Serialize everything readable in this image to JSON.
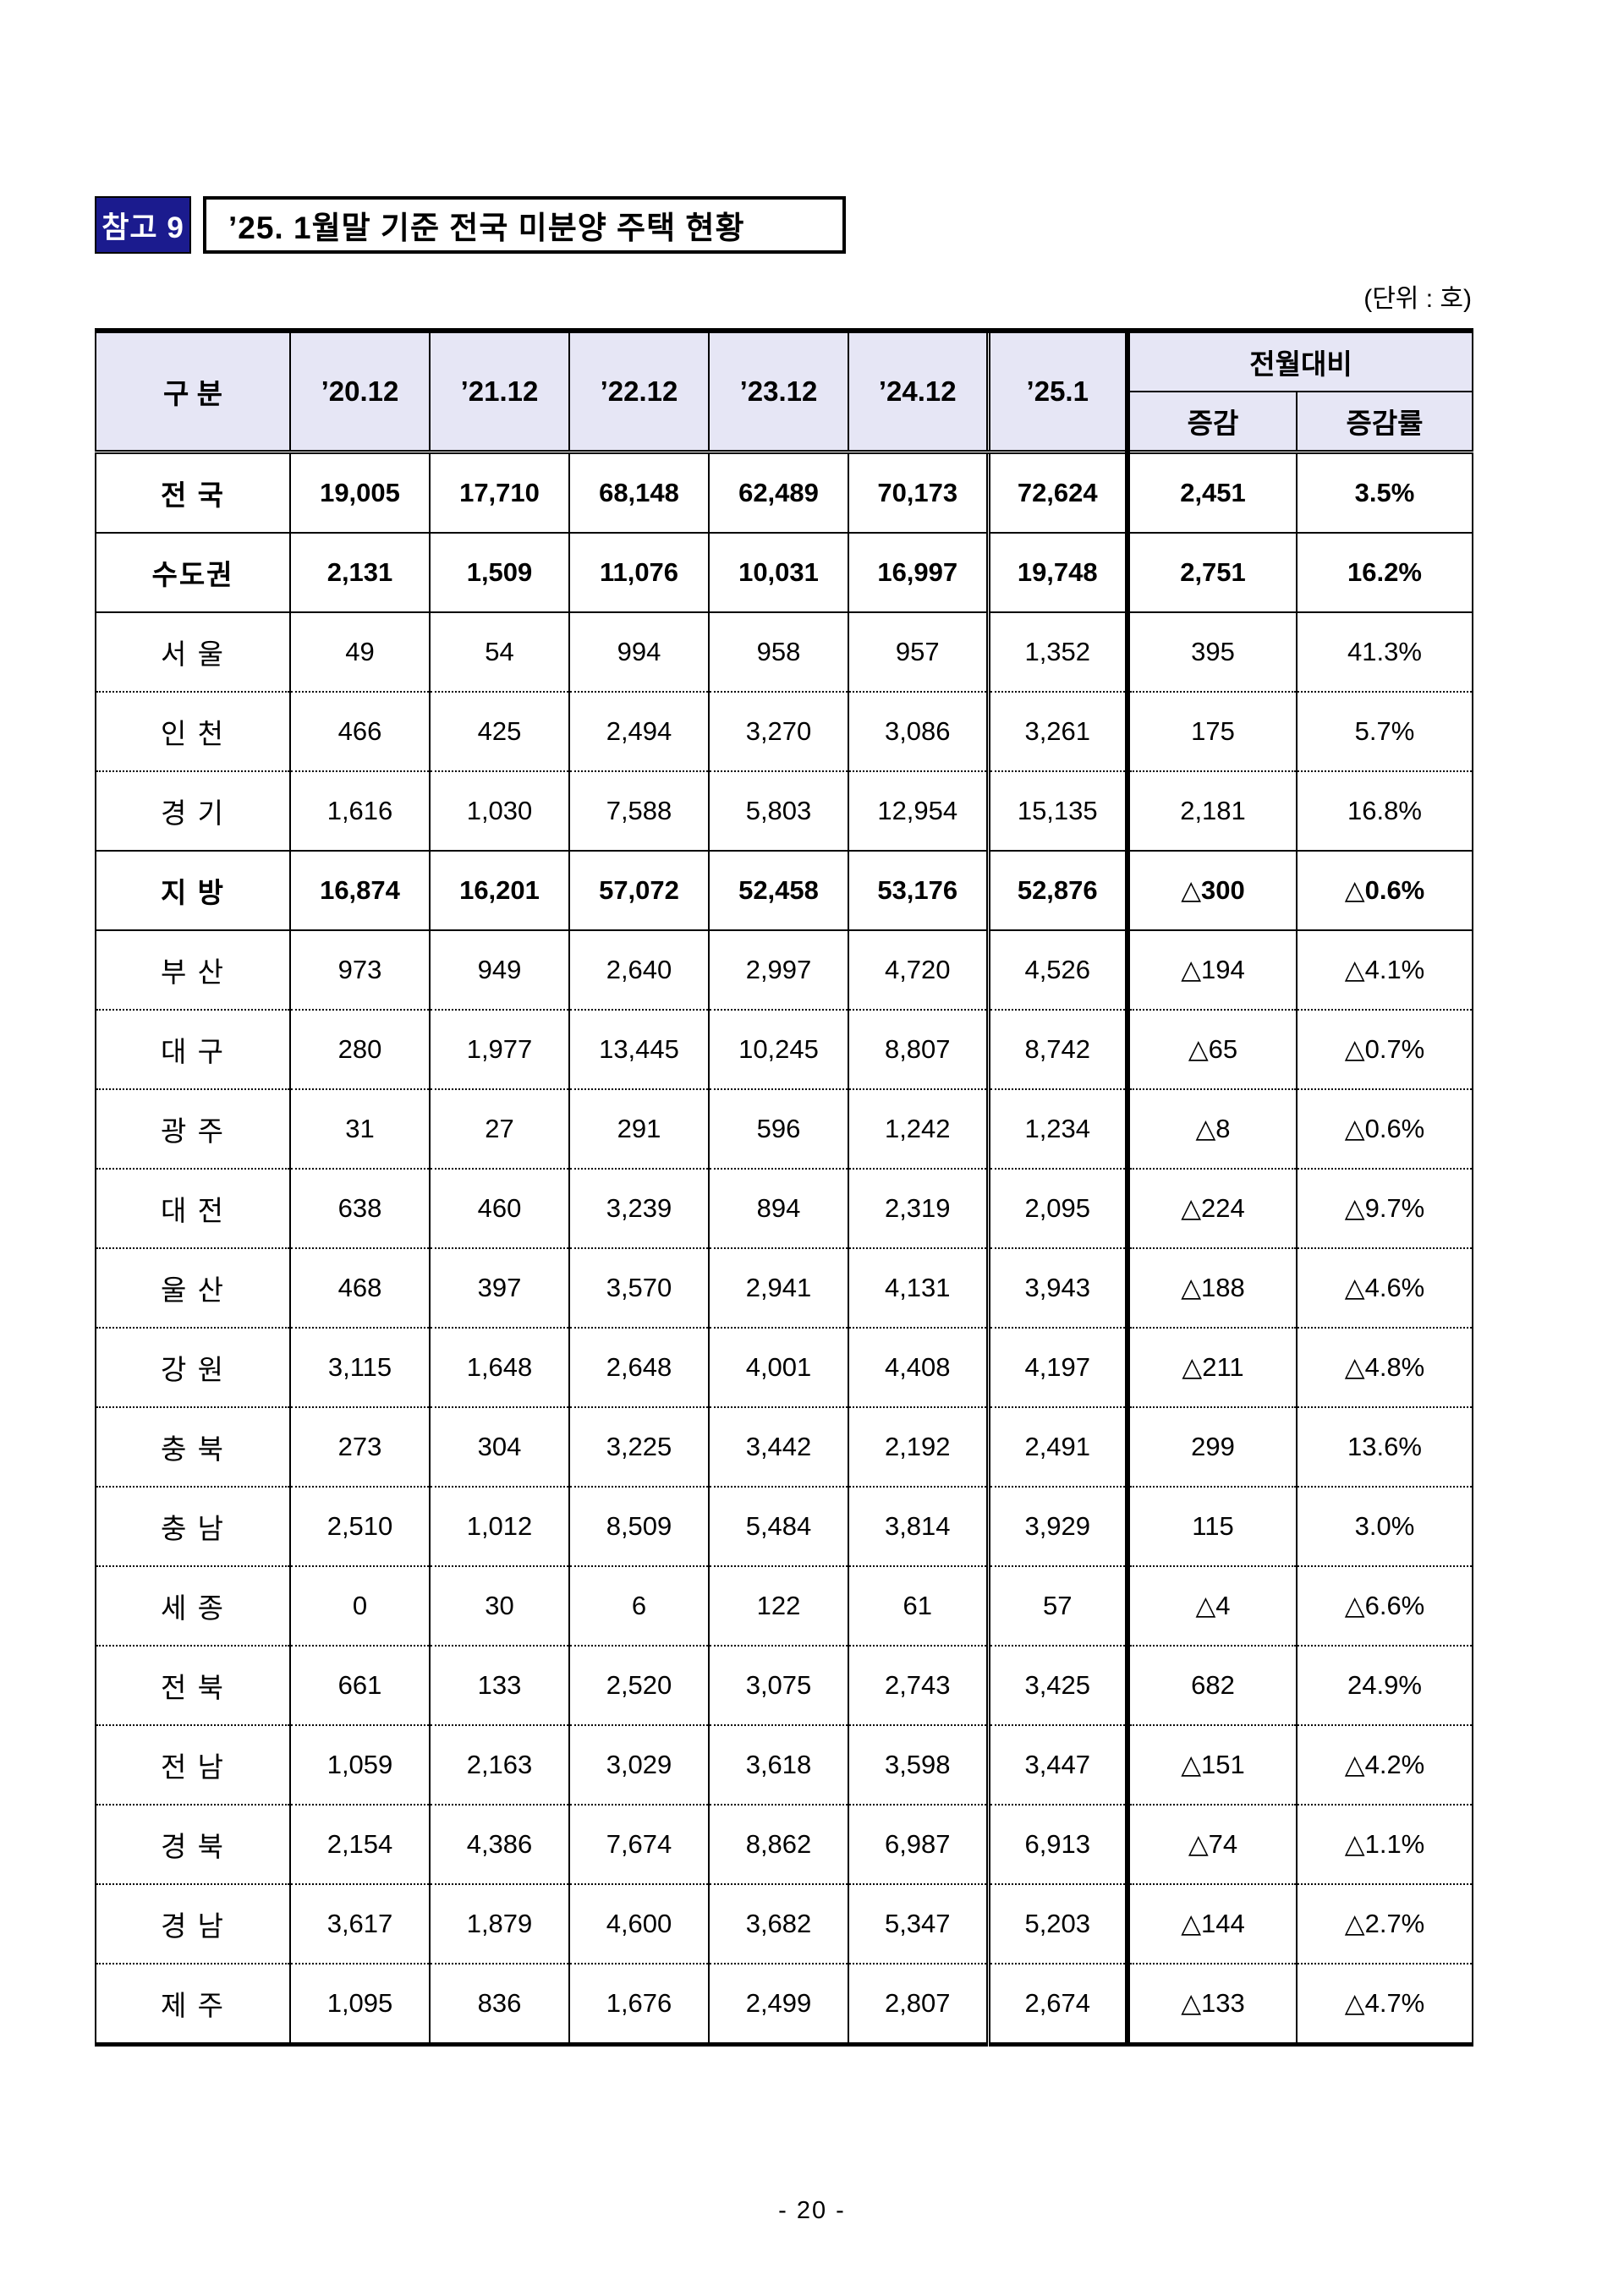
{
  "page": {
    "badge": "참고 9",
    "title": "’25. 1월말 기준 전국 미분양 주택 현황",
    "unit_note": "(단위 : 호)",
    "page_number": "- 20 -"
  },
  "colors": {
    "badge_bg": "#1b1b8e",
    "header_bg": "#e6e6f5",
    "border": "#000000"
  },
  "table": {
    "col_group_label": "전월대비",
    "headers": [
      "구 분",
      "’20.12",
      "’21.12",
      "’22.12",
      "’23.12",
      "’24.12",
      "’25.1"
    ],
    "sub_headers": [
      "증감",
      "증감률"
    ],
    "rows": [
      {
        "region": "전 국",
        "bold": true,
        "border": "solid",
        "values": [
          "19,005",
          "17,710",
          "68,148",
          "62,489",
          "70,173",
          "72,624",
          "2,451",
          "3.5%"
        ]
      },
      {
        "region": "수도권",
        "bold": true,
        "border": "solid",
        "values": [
          "2,131",
          "1,509",
          "11,076",
          "10,031",
          "16,997",
          "19,748",
          "2,751",
          "16.2%"
        ]
      },
      {
        "region": "서 울",
        "bold": false,
        "border": "dotted",
        "values": [
          "49",
          "54",
          "994",
          "958",
          "957",
          "1,352",
          "395",
          "41.3%"
        ]
      },
      {
        "region": "인 천",
        "bold": false,
        "border": "dotted",
        "values": [
          "466",
          "425",
          "2,494",
          "3,270",
          "3,086",
          "3,261",
          "175",
          "5.7%"
        ]
      },
      {
        "region": "경 기",
        "bold": false,
        "border": "solid",
        "values": [
          "1,616",
          "1,030",
          "7,588",
          "5,803",
          "12,954",
          "15,135",
          "2,181",
          "16.8%"
        ]
      },
      {
        "region": "지 방",
        "bold": true,
        "border": "solid",
        "values": [
          "16,874",
          "16,201",
          "57,072",
          "52,458",
          "53,176",
          "52,876",
          "△300",
          "△0.6%"
        ]
      },
      {
        "region": "부 산",
        "bold": false,
        "border": "dotted",
        "values": [
          "973",
          "949",
          "2,640",
          "2,997",
          "4,720",
          "4,526",
          "△194",
          "△4.1%"
        ]
      },
      {
        "region": "대 구",
        "bold": false,
        "border": "dotted",
        "values": [
          "280",
          "1,977",
          "13,445",
          "10,245",
          "8,807",
          "8,742",
          "△65",
          "△0.7%"
        ]
      },
      {
        "region": "광 주",
        "bold": false,
        "border": "dotted",
        "values": [
          "31",
          "27",
          "291",
          "596",
          "1,242",
          "1,234",
          "△8",
          "△0.6%"
        ]
      },
      {
        "region": "대 전",
        "bold": false,
        "border": "dotted",
        "values": [
          "638",
          "460",
          "3,239",
          "894",
          "2,319",
          "2,095",
          "△224",
          "△9.7%"
        ]
      },
      {
        "region": "울 산",
        "bold": false,
        "border": "dotted",
        "values": [
          "468",
          "397",
          "3,570",
          "2,941",
          "4,131",
          "3,943",
          "△188",
          "△4.6%"
        ]
      },
      {
        "region": "강 원",
        "bold": false,
        "border": "dotted",
        "values": [
          "3,115",
          "1,648",
          "2,648",
          "4,001",
          "4,408",
          "4,197",
          "△211",
          "△4.8%"
        ]
      },
      {
        "region": "충 북",
        "bold": false,
        "border": "dotted",
        "values": [
          "273",
          "304",
          "3,225",
          "3,442",
          "2,192",
          "2,491",
          "299",
          "13.6%"
        ]
      },
      {
        "region": "충 남",
        "bold": false,
        "border": "dotted",
        "values": [
          "2,510",
          "1,012",
          "8,509",
          "5,484",
          "3,814",
          "3,929",
          "115",
          "3.0%"
        ]
      },
      {
        "region": "세 종",
        "bold": false,
        "border": "dotted",
        "values": [
          "0",
          "30",
          "6",
          "122",
          "61",
          "57",
          "△4",
          "△6.6%"
        ]
      },
      {
        "region": "전 북",
        "bold": false,
        "border": "dotted",
        "values": [
          "661",
          "133",
          "2,520",
          "3,075",
          "2,743",
          "3,425",
          "682",
          "24.9%"
        ]
      },
      {
        "region": "전 남",
        "bold": false,
        "border": "dotted",
        "values": [
          "1,059",
          "2,163",
          "3,029",
          "3,618",
          "3,598",
          "3,447",
          "△151",
          "△4.2%"
        ]
      },
      {
        "region": "경 북",
        "bold": false,
        "border": "dotted",
        "values": [
          "2,154",
          "4,386",
          "7,674",
          "8,862",
          "6,987",
          "6,913",
          "△74",
          "△1.1%"
        ]
      },
      {
        "region": "경 남",
        "bold": false,
        "border": "dotted",
        "values": [
          "3,617",
          "1,879",
          "4,600",
          "3,682",
          "5,347",
          "5,203",
          "△144",
          "△2.7%"
        ]
      },
      {
        "region": "제 주",
        "bold": false,
        "border": "none",
        "values": [
          "1,095",
          "836",
          "1,676",
          "2,499",
          "2,807",
          "2,674",
          "△133",
          "△4.7%"
        ]
      }
    ]
  }
}
